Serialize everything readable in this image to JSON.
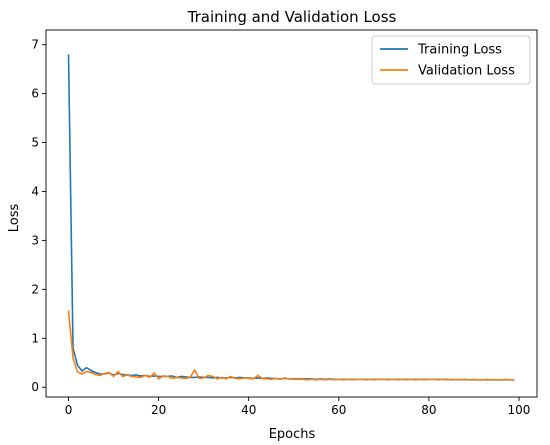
{
  "chart_data": {
    "type": "line",
    "title": "Training and Validation Loss",
    "xlabel": "Epochs",
    "ylabel": "Loss",
    "xlim": [
      -5,
      104
    ],
    "ylim": [
      -0.2,
      7.3
    ],
    "xticks": [
      0,
      20,
      40,
      60,
      80,
      100
    ],
    "yticks": [
      0,
      1,
      2,
      3,
      4,
      5,
      6,
      7
    ],
    "grid": false,
    "legend": "upper-right",
    "x": [
      0,
      1,
      2,
      3,
      4,
      5,
      6,
      7,
      8,
      9,
      10,
      11,
      12,
      13,
      14,
      15,
      16,
      17,
      18,
      19,
      20,
      21,
      22,
      23,
      24,
      25,
      26,
      27,
      28,
      29,
      30,
      31,
      32,
      33,
      34,
      35,
      36,
      37,
      38,
      39,
      40,
      41,
      42,
      43,
      44,
      45,
      46,
      47,
      48,
      49,
      50,
      51,
      52,
      53,
      54,
      55,
      56,
      57,
      58,
      59,
      60,
      61,
      62,
      63,
      64,
      65,
      66,
      67,
      68,
      69,
      70,
      71,
      72,
      73,
      74,
      75,
      76,
      77,
      78,
      79,
      80,
      81,
      82,
      83,
      84,
      85,
      86,
      87,
      88,
      89,
      90,
      91,
      92,
      93,
      94,
      95,
      96,
      97,
      98,
      99
    ],
    "series": [
      {
        "name": "Training Loss",
        "color": "#1f77b4",
        "values": [
          6.8,
          0.8,
          0.45,
          0.33,
          0.4,
          0.34,
          0.3,
          0.27,
          0.27,
          0.29,
          0.25,
          0.28,
          0.26,
          0.25,
          0.24,
          0.25,
          0.23,
          0.24,
          0.22,
          0.23,
          0.22,
          0.22,
          0.22,
          0.23,
          0.2,
          0.22,
          0.21,
          0.2,
          0.2,
          0.21,
          0.2,
          0.2,
          0.19,
          0.2,
          0.19,
          0.19,
          0.2,
          0.19,
          0.2,
          0.19,
          0.19,
          0.18,
          0.19,
          0.18,
          0.19,
          0.18,
          0.18,
          0.17,
          0.18,
          0.17,
          0.17,
          0.17,
          0.17,
          0.17,
          0.17,
          0.16,
          0.17,
          0.16,
          0.17,
          0.16,
          0.16,
          0.16,
          0.16,
          0.16,
          0.16,
          0.16,
          0.16,
          0.16,
          0.16,
          0.16,
          0.16,
          0.16,
          0.16,
          0.16,
          0.16,
          0.16,
          0.16,
          0.16,
          0.16,
          0.16,
          0.16,
          0.16,
          0.16,
          0.16,
          0.16,
          0.15,
          0.16,
          0.15,
          0.16,
          0.15,
          0.15,
          0.15,
          0.15,
          0.15,
          0.15,
          0.15,
          0.15,
          0.15,
          0.15,
          0.15
        ]
      },
      {
        "name": "Validation Loss",
        "color": "#ff7f0e",
        "values": [
          1.57,
          0.6,
          0.31,
          0.27,
          0.32,
          0.3,
          0.26,
          0.24,
          0.28,
          0.3,
          0.22,
          0.32,
          0.22,
          0.25,
          0.22,
          0.21,
          0.2,
          0.24,
          0.2,
          0.29,
          0.17,
          0.23,
          0.22,
          0.18,
          0.2,
          0.19,
          0.18,
          0.2,
          0.35,
          0.18,
          0.19,
          0.24,
          0.22,
          0.17,
          0.2,
          0.17,
          0.22,
          0.18,
          0.17,
          0.19,
          0.18,
          0.17,
          0.24,
          0.18,
          0.17,
          0.16,
          0.18,
          0.16,
          0.19,
          0.17,
          0.16,
          0.16,
          0.16,
          0.15,
          0.16,
          0.15,
          0.16,
          0.15,
          0.16,
          0.15,
          0.16,
          0.15,
          0.16,
          0.15,
          0.16,
          0.16,
          0.15,
          0.16,
          0.15,
          0.16,
          0.16,
          0.15,
          0.16,
          0.15,
          0.16,
          0.15,
          0.16,
          0.15,
          0.16,
          0.15,
          0.16,
          0.16,
          0.15,
          0.16,
          0.15,
          0.16,
          0.15,
          0.16,
          0.15,
          0.15,
          0.16,
          0.15,
          0.15,
          0.16,
          0.15,
          0.15,
          0.15,
          0.16,
          0.15,
          0.15
        ]
      }
    ]
  }
}
